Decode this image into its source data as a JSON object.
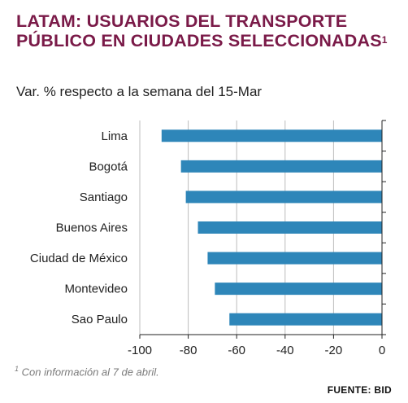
{
  "header": {
    "title": "LATAM: USUARIOS DEL TRANSPORTE PÚBLICO EN CIUDADES SELECCIONADAS",
    "title_marker": "1",
    "subtitle": "Var. % respecto a la semana del 15-Mar"
  },
  "footer": {
    "footnote_marker": "1",
    "footnote": "Con información al 7 de abril.",
    "source": "FUENTE: BID"
  },
  "colors": {
    "bar": "#2e86b9",
    "title": "#7a1a48",
    "grid": "#bdbdbd",
    "axis": "#222222"
  },
  "chart_data": {
    "type": "bar",
    "orientation": "horizontal",
    "categories": [
      "Lima",
      "Bogotá",
      "Santiago",
      "Buenos Aires",
      "Ciudad de México",
      "Montevideo",
      "Sao Paulo"
    ],
    "values": [
      -91,
      -83,
      -81,
      -76,
      -72,
      -69,
      -63
    ],
    "xlim": [
      -100,
      0
    ],
    "xticks": [
      -100,
      -80,
      -60,
      -40,
      -20,
      0
    ],
    "xtick_labels": [
      "-100",
      "-80",
      "-60",
      "-40",
      "-20",
      "0"
    ],
    "grid": "vertical",
    "xlabel": "",
    "ylabel": ""
  }
}
